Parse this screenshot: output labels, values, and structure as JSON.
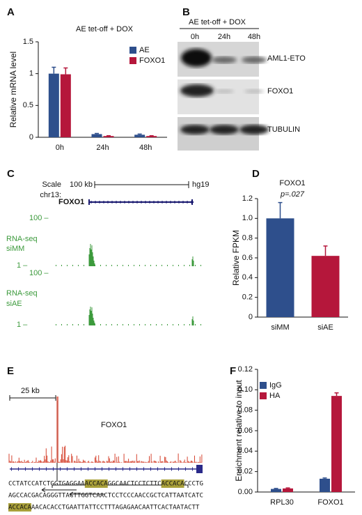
{
  "panel_labels": [
    "A",
    "B",
    "C",
    "D",
    "E",
    "F"
  ],
  "chart_data": [
    {
      "type": "bar",
      "title": "AE tet-off + DOX",
      "ylabel": "Relative mRNA level",
      "categories": [
        "0h",
        "24h",
        "48h"
      ],
      "series": [
        {
          "name": "AE",
          "color": "#2e4f8c",
          "values": [
            1.0,
            0.05,
            0.04
          ],
          "errors": [
            0.1,
            0.01,
            0.01
          ]
        },
        {
          "name": "FOXO1",
          "color": "#b5173b",
          "values": [
            0.99,
            0.02,
            0.02
          ],
          "errors": [
            0.1,
            0.005,
            0.005
          ]
        }
      ],
      "ylim": [
        0,
        1.5
      ],
      "yticks": [
        0,
        0.5,
        1,
        1.5
      ],
      "legend": "upper right"
    },
    {
      "type": "bar",
      "title": "FOXO1",
      "subtitle": "p=.027",
      "ylabel": "Relative FPKM",
      "categories": [
        "siMM",
        "siAE"
      ],
      "values": [
        1.0,
        0.62
      ],
      "errors": [
        0.16,
        0.1
      ],
      "colors": [
        "#2e4f8c",
        "#b5173b"
      ],
      "ylim": [
        0,
        1.2
      ],
      "yticks": [
        0,
        0.2,
        0.4,
        0.6,
        0.8,
        {
          "value": 1,
          "label": "1.0"
        },
        1.2
      ]
    },
    {
      "type": "bar",
      "ylabel": "Enrichment relative to input",
      "categories": [
        "RPL30",
        "FOXO1"
      ],
      "series": [
        {
          "name": "IgG",
          "color": "#2e4f8c",
          "values": [
            0.003,
            0.013
          ],
          "errors": [
            0.0005,
            0.0007
          ]
        },
        {
          "name": "HA",
          "color": "#b5173b",
          "values": [
            0.0035,
            0.094
          ],
          "errors": [
            0.0005,
            0.003
          ]
        }
      ],
      "ylim": [
        0,
        0.12
      ],
      "yticks": [
        {
          "value": 0,
          "label": "0.00"
        },
        {
          "value": 0.02,
          "label": "0.02"
        },
        {
          "value": 0.04,
          "label": "0.04"
        },
        {
          "value": 0.06,
          "label": "0.06"
        },
        {
          "value": 0.08,
          "label": "0.08"
        },
        {
          "value": 0.1,
          "label": "0.10"
        },
        {
          "value": 0.12,
          "label": "0.12"
        }
      ],
      "legend": "upper left"
    }
  ],
  "western_blot": {
    "title": "AE tet-off + DOX",
    "lanes": [
      "0h",
      "24h",
      "48h"
    ],
    "proteins": [
      "AML1-ETO",
      "FOXO1",
      "TUBULIN"
    ]
  },
  "genome_browser": {
    "scale": "Scale",
    "chrom": "chr13:",
    "scale_length": "100 kb",
    "assembly": "hg19",
    "gene": "FOXO1",
    "tracks": [
      {
        "max": "100 –",
        "label": [
          "RNA-seq",
          "siMM"
        ],
        "min": "1 –"
      },
      {
        "max": "100 –",
        "label": [
          "RNA-seq",
          "siAE"
        ],
        "min": "1 –"
      }
    ]
  },
  "chip_track": {
    "scale_length": "25 kb",
    "gene": "FOXO1",
    "sequence": [
      [
        {
          "text": "CCTATCCATCTGGTGAGGAA",
          "highlight": false
        },
        {
          "text": "ACCACA",
          "highlight": true
        },
        {
          "text": "GGCAACTCCTCTTC",
          "highlight": false
        },
        {
          "text": "ACCACA",
          "highlight": true
        },
        {
          "text": "CCCTG",
          "highlight": false
        }
      ],
      [
        {
          "text": "AGCCACGACAGGGTTACTTGGTCAACTCCTCCCAACCGCTCATTAATCATC",
          "highlight": false
        }
      ],
      [
        {
          "text": "ACCACA",
          "highlight": true
        },
        {
          "text": "AACACACCTGAATTATTCCTTTAGAGAACAATTCACTAATACTT",
          "highlight": false
        }
      ]
    ]
  }
}
